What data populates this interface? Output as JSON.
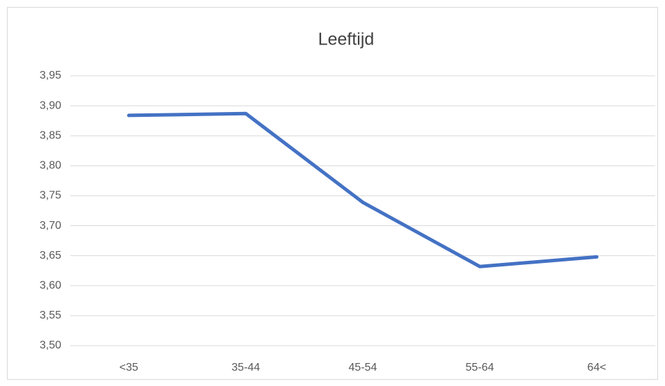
{
  "chart_data": {
    "type": "line",
    "title": "Leeftijd",
    "categories": [
      "<35",
      "35-44",
      "45-54",
      "55-64",
      "64<"
    ],
    "values": [
      3.884,
      3.887,
      3.739,
      3.632,
      3.648
    ],
    "color": "#4472c4",
    "ylim": [
      3.5,
      3.95
    ],
    "yticks": [
      {
        "value": 3.5,
        "label": "3,50"
      },
      {
        "value": 3.55,
        "label": "3,55"
      },
      {
        "value": 3.6,
        "label": "3,60"
      },
      {
        "value": 3.65,
        "label": "3,65"
      },
      {
        "value": 3.7,
        "label": "3,70"
      },
      {
        "value": 3.75,
        "label": "3,75"
      },
      {
        "value": 3.8,
        "label": "3,80"
      },
      {
        "value": 3.85,
        "label": "3,85"
      },
      {
        "value": 3.9,
        "label": "3,90"
      },
      {
        "value": 3.95,
        "label": "3,95"
      }
    ],
    "grid": true
  }
}
